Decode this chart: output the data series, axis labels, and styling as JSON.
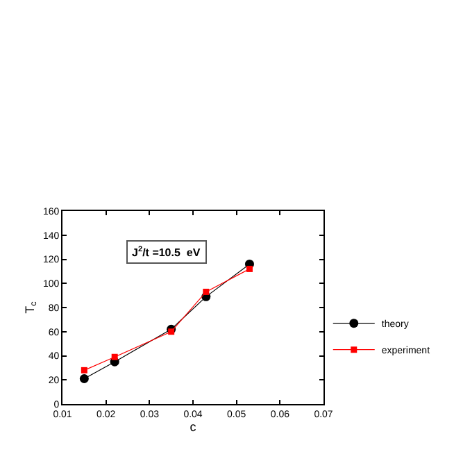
{
  "chart_data": {
    "type": "line",
    "xlabel": "c",
    "ylabel": "T$_{c}$",
    "annotations": [
      "J$^{2}$/t =10.5  eV"
    ],
    "x": [
      0.015,
      0.022,
      0.035,
      0.043,
      0.053
    ],
    "series": [
      {
        "name": "theory",
        "color": "#000000",
        "values": [
          21,
          35,
          62,
          89,
          116
        ],
        "marker": "circle"
      },
      {
        "name": "experiment",
        "color": "#ff0000",
        "values": [
          28,
          39,
          60,
          93,
          112
        ],
        "marker": "square"
      }
    ],
    "xlim": [
      0.01,
      0.07
    ],
    "xticks": [
      0.01,
      0.02,
      0.03,
      0.04,
      0.05,
      0.06,
      0.07
    ],
    "ylim": [
      0,
      160
    ],
    "yticks": [
      0,
      20,
      40,
      60,
      80,
      100,
      120,
      140,
      160
    ],
    "legend": "right"
  }
}
